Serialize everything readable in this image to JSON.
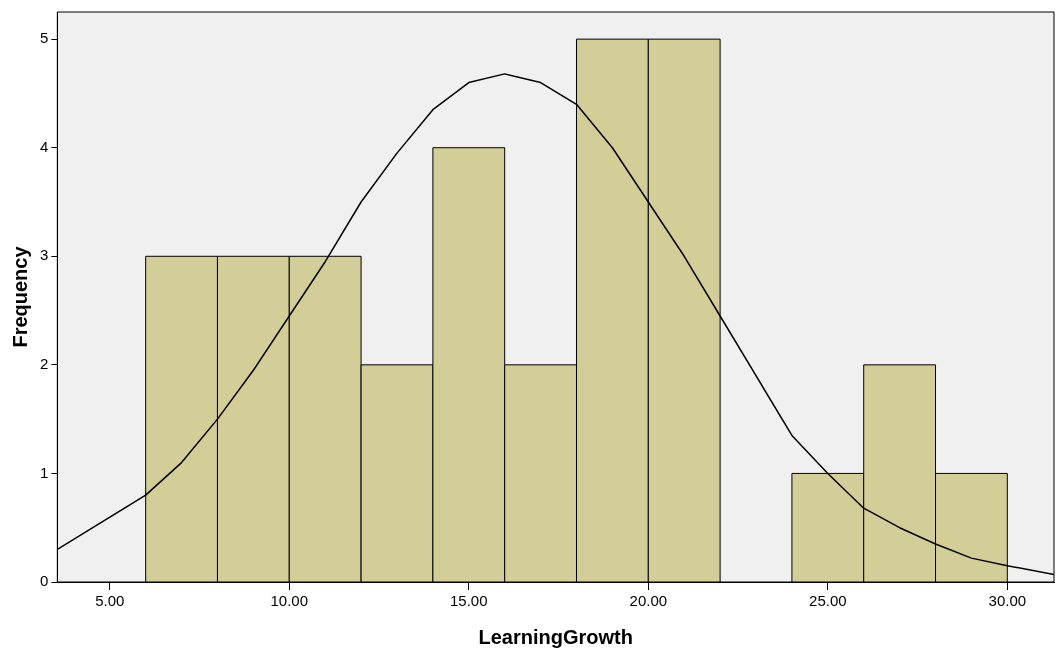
{
  "chart_data": {
    "type": "histogram",
    "xlabel": "LearningGrowth",
    "ylabel": "Frequency",
    "bins": [
      6,
      8,
      10,
      12,
      14,
      16,
      18,
      20,
      22,
      24,
      26,
      28,
      30
    ],
    "values": [
      3,
      3,
      3,
      2,
      4,
      2,
      5,
      5,
      0,
      1,
      2,
      1
    ],
    "color": "#d3ce97",
    "series": [
      {
        "type": "line",
        "color": "#000000",
        "x": [
          3.54,
          6,
          7,
          8,
          9,
          10,
          11,
          12,
          13,
          14,
          15,
          16,
          17,
          18,
          19,
          20,
          21,
          22,
          23,
          24,
          25,
          26,
          27,
          28,
          29,
          30,
          31.3
        ],
        "values": [
          0.3,
          0.8,
          1.1,
          1.5,
          1.95,
          2.45,
          2.95,
          3.5,
          3.95,
          4.35,
          4.6,
          4.68,
          4.6,
          4.4,
          4.0,
          3.5,
          3.0,
          2.45,
          1.9,
          1.35,
          1.0,
          0.68,
          0.5,
          0.35,
          0.22,
          0.15,
          0.07
        ]
      }
    ],
    "xlim": [
      3.54,
      31.3
    ],
    "xticks": [
      {
        "value": 5,
        "label": "5.00"
      },
      {
        "value": 10,
        "label": "10.00"
      },
      {
        "value": 15,
        "label": "15.00"
      },
      {
        "value": 20,
        "label": "20.00"
      },
      {
        "value": 25,
        "label": "25.00"
      },
      {
        "value": 30,
        "label": "30.00"
      }
    ],
    "ylim": [
      0,
      5.25
    ],
    "yticks": [
      0,
      1,
      2,
      3,
      4,
      5
    ],
    "grid": false,
    "legend": false
  }
}
